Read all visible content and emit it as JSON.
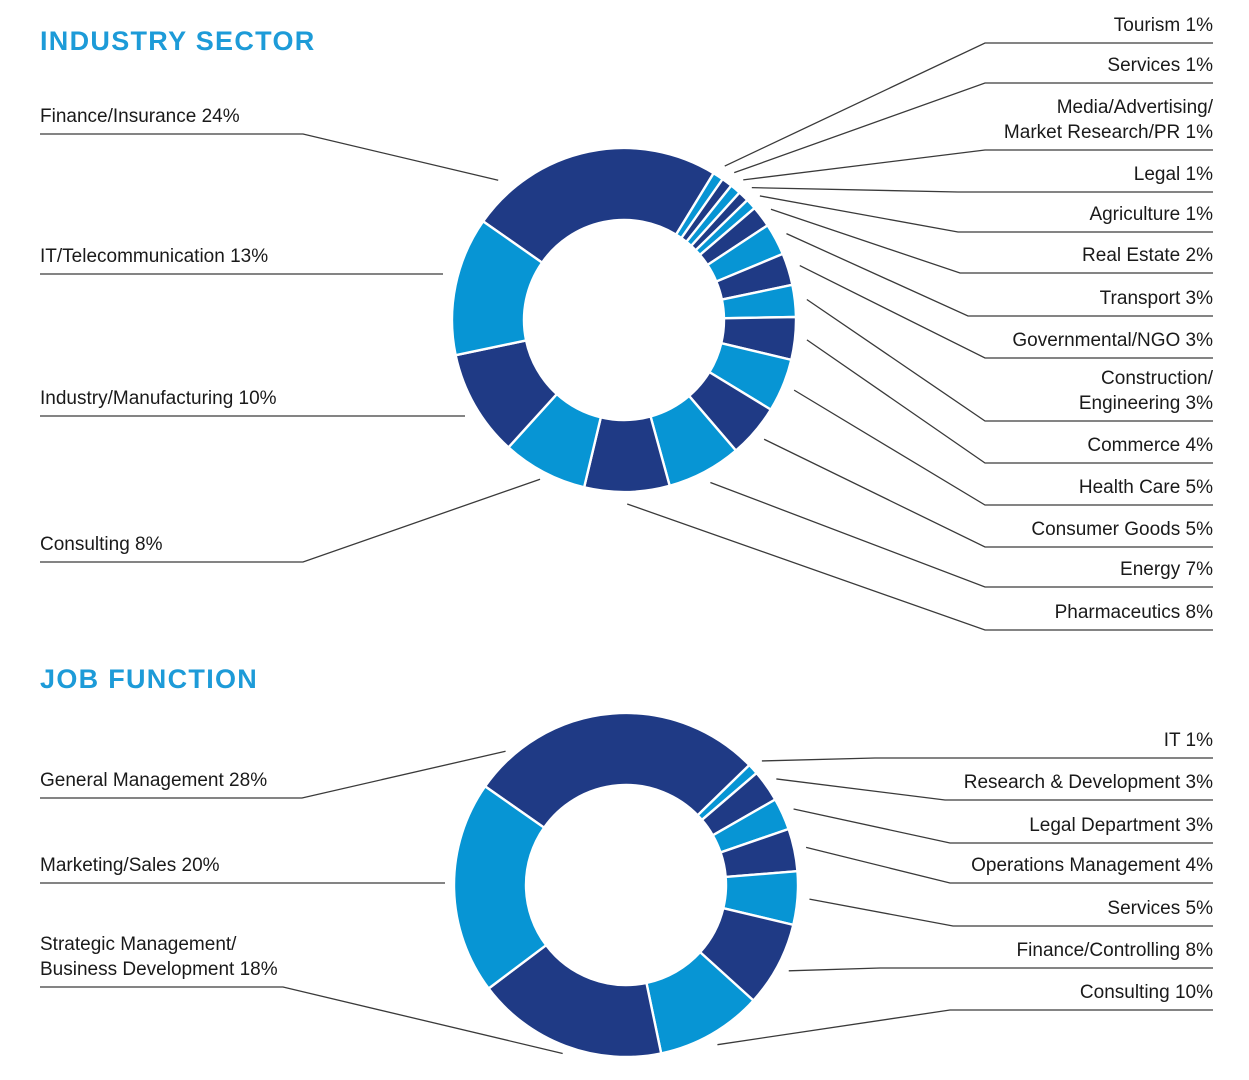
{
  "colors": {
    "dark_blue": "#1F3A85",
    "light_blue": "#0795D4",
    "title_blue": "#1D9BD8",
    "leader_line": "#3a3a3a",
    "label_text": "#1a1a1a",
    "background": "#ffffff"
  },
  "chart_data": [
    {
      "type": "pie",
      "subtype": "donut",
      "title": "INDUSTRY SECTOR",
      "direction": "clockwise",
      "units": "%",
      "slices": [
        {
          "label": "Finance/Insurance",
          "pct": 24,
          "display": [
            "Finance/Insurance 24%"
          ],
          "side": "left",
          "color": "dark"
        },
        {
          "label": "Tourism",
          "pct": 1,
          "display": [
            "Tourism 1%"
          ],
          "side": "right",
          "color": "light"
        },
        {
          "label": "Services",
          "pct": 1,
          "display": [
            "Services 1%"
          ],
          "side": "right",
          "color": "dark"
        },
        {
          "label": "Media/Advertising/Market Research/PR",
          "pct": 1,
          "display": [
            "Media/Advertising/",
            "Market Research/PR 1%"
          ],
          "side": "right",
          "color": "light"
        },
        {
          "label": "Legal",
          "pct": 1,
          "display": [
            "Legal 1%"
          ],
          "side": "right",
          "color": "dark"
        },
        {
          "label": "Agriculture",
          "pct": 1,
          "display": [
            "Agriculture 1%"
          ],
          "side": "right",
          "color": "light"
        },
        {
          "label": "Real Estate",
          "pct": 2,
          "display": [
            "Real Estate 2%"
          ],
          "side": "right",
          "color": "dark"
        },
        {
          "label": "Transport",
          "pct": 3,
          "display": [
            "Transport 3%"
          ],
          "side": "right",
          "color": "light"
        },
        {
          "label": "Governmental/NGO",
          "pct": 3,
          "display": [
            "Governmental/NGO 3%"
          ],
          "side": "right",
          "color": "dark"
        },
        {
          "label": "Construction/Engineering",
          "pct": 3,
          "display": [
            "Construction/",
            "Engineering 3%"
          ],
          "side": "right",
          "color": "light"
        },
        {
          "label": "Commerce",
          "pct": 4,
          "display": [
            "Commerce 4%"
          ],
          "side": "right",
          "color": "dark"
        },
        {
          "label": "Health Care",
          "pct": 5,
          "display": [
            "Health Care 5%"
          ],
          "side": "right",
          "color": "light"
        },
        {
          "label": "Consumer Goods",
          "pct": 5,
          "display": [
            "Consumer Goods 5%"
          ],
          "side": "right",
          "color": "dark"
        },
        {
          "label": "Energy",
          "pct": 7,
          "display": [
            "Energy 7%"
          ],
          "side": "right",
          "color": "light"
        },
        {
          "label": "Pharmaceutics",
          "pct": 8,
          "display": [
            "Pharmaceutics 8%"
          ],
          "side": "right",
          "color": "dark"
        },
        {
          "label": "Consulting",
          "pct": 8,
          "display": [
            "Consulting 8%"
          ],
          "side": "left",
          "color": "light"
        },
        {
          "label": "Industry/Manufacturing",
          "pct": 10,
          "display": [
            "Industry/Manufacturing 10%"
          ],
          "side": "left",
          "color": "dark"
        },
        {
          "label": "IT/Telecommunication",
          "pct": 13,
          "display": [
            "IT/Telecommunication 13%"
          ],
          "side": "left",
          "color": "light"
        }
      ]
    },
    {
      "type": "pie",
      "subtype": "donut",
      "title": "JOB FUNCTION",
      "direction": "clockwise",
      "units": "%",
      "slices": [
        {
          "label": "General Management",
          "pct": 28,
          "display": [
            "General Management 28%"
          ],
          "side": "left",
          "color": "dark"
        },
        {
          "label": "IT",
          "pct": 1,
          "display": [
            "IT 1%"
          ],
          "side": "right",
          "color": "light"
        },
        {
          "label": "Research & Development",
          "pct": 3,
          "display": [
            "Research & Development 3%"
          ],
          "side": "right",
          "color": "dark"
        },
        {
          "label": "Legal Department",
          "pct": 3,
          "display": [
            "Legal Department 3%"
          ],
          "side": "right",
          "color": "light"
        },
        {
          "label": "Operations Management",
          "pct": 4,
          "display": [
            "Operations Management 4%"
          ],
          "side": "right",
          "color": "dark"
        },
        {
          "label": "Services",
          "pct": 5,
          "display": [
            "Services 5%"
          ],
          "side": "right",
          "color": "light"
        },
        {
          "label": "Finance/Controlling",
          "pct": 8,
          "display": [
            "Finance/Controlling 8%"
          ],
          "side": "right",
          "color": "dark"
        },
        {
          "label": "Consulting",
          "pct": 10,
          "display": [
            "Consulting 10%"
          ],
          "side": "right",
          "color": "light"
        },
        {
          "label": "Strategic Management/Business Development",
          "pct": 18,
          "display": [
            "Strategic Management/",
            "Business Development 18%"
          ],
          "side": "left",
          "color": "dark"
        },
        {
          "label": "Marketing/Sales",
          "pct": 20,
          "display": [
            "Marketing/Sales 20%"
          ],
          "side": "left",
          "color": "light"
        }
      ]
    }
  ]
}
